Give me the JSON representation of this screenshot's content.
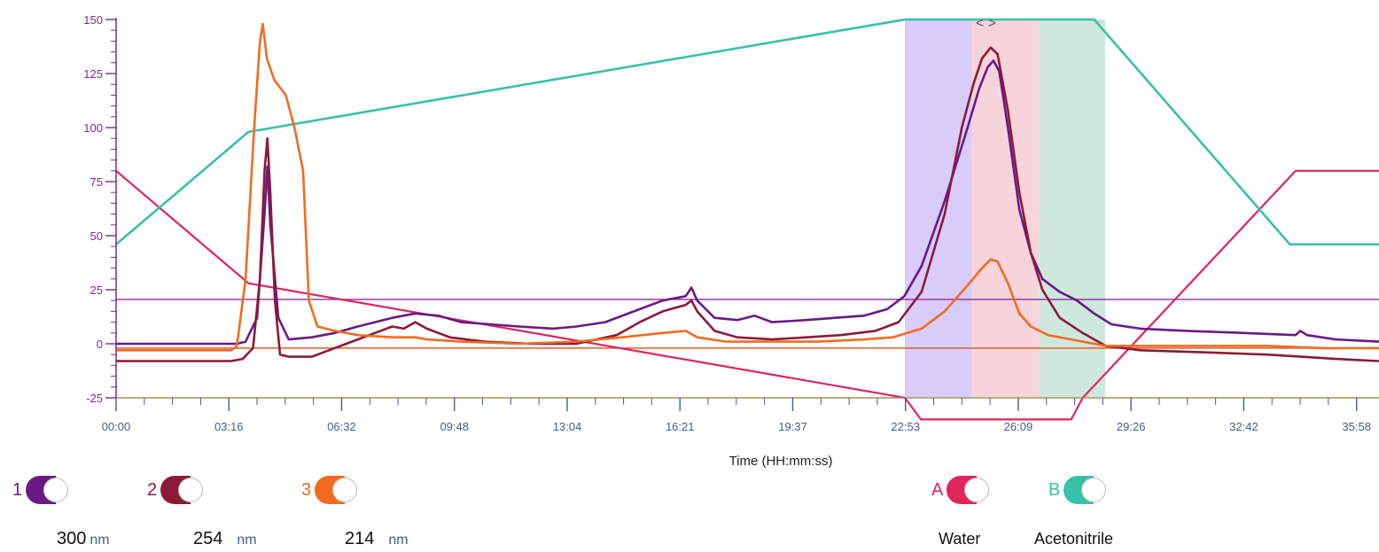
{
  "chart_data": {
    "type": "line",
    "x_unit_label": "Time (HH:mm:ss)",
    "y_ticks": [
      "150",
      "125",
      "100",
      "75",
      "50",
      "25",
      "0",
      "-25"
    ],
    "ylim": [
      -25,
      150
    ],
    "x_ticks": [
      "00:00",
      "03:16",
      "06:32",
      "09:48",
      "13:04",
      "16:21",
      "19:37",
      "22:53",
      "26:09",
      "29:26",
      "32:42",
      "35:58"
    ],
    "xlim_seconds": [
      0,
      2195
    ],
    "threshold_lines": [
      {
        "value": 20.5,
        "color": "#8e2aa3"
      },
      {
        "value": -2,
        "color": "#e35a2a"
      },
      {
        "value": -25,
        "color": "#e8c33a"
      }
    ],
    "fractions": [
      {
        "start_s": 1371,
        "end_s": 1487,
        "color": "#d8ccfb"
      },
      {
        "start_s": 1487,
        "end_s": 1604,
        "color": "#f7d4da"
      },
      {
        "start_s": 1604,
        "end_s": 1719,
        "color": "#cfe8dc"
      }
    ],
    "series": [
      {
        "name": "A",
        "color": "#e0245e",
        "width": 2.2,
        "points": [
          [
            0,
            80
          ],
          [
            230,
            28
          ],
          [
            1371,
            -25
          ],
          [
            1399,
            -35
          ],
          [
            1500,
            -35
          ],
          [
            1600,
            -35
          ],
          [
            1660,
            -35
          ],
          [
            1680,
            -25
          ],
          [
            2050,
            80
          ],
          [
            2195,
            80
          ]
        ]
      },
      {
        "name": "B",
        "color": "#36c1a8",
        "width": 2.6,
        "points": [
          [
            0,
            46
          ],
          [
            230,
            98
          ],
          [
            1371,
            150
          ],
          [
            1700,
            150
          ],
          [
            2040,
            46
          ],
          [
            2195,
            46
          ]
        ]
      },
      {
        "name": "1",
        "color": "#6a1a86",
        "width": 2.6,
        "points": [
          [
            0,
            0
          ],
          [
            210,
            0
          ],
          [
            225,
            1
          ],
          [
            245,
            12
          ],
          [
            258,
            60
          ],
          [
            263,
            82
          ],
          [
            268,
            55
          ],
          [
            282,
            12
          ],
          [
            300,
            2
          ],
          [
            340,
            3
          ],
          [
            380,
            5
          ],
          [
            420,
            8
          ],
          [
            480,
            12
          ],
          [
            520,
            14
          ],
          [
            560,
            13
          ],
          [
            600,
            10
          ],
          [
            650,
            9
          ],
          [
            700,
            8
          ],
          [
            760,
            7
          ],
          [
            800,
            8
          ],
          [
            850,
            10
          ],
          [
            900,
            15
          ],
          [
            950,
            20
          ],
          [
            990,
            22
          ],
          [
            1000,
            26
          ],
          [
            1010,
            20
          ],
          [
            1040,
            12
          ],
          [
            1080,
            11
          ],
          [
            1110,
            13
          ],
          [
            1140,
            10
          ],
          [
            1200,
            11
          ],
          [
            1250,
            12
          ],
          [
            1300,
            13
          ],
          [
            1340,
            16
          ],
          [
            1370,
            22
          ],
          [
            1400,
            36
          ],
          [
            1440,
            66
          ],
          [
            1480,
            100
          ],
          [
            1500,
            118
          ],
          [
            1515,
            128
          ],
          [
            1525,
            131
          ],
          [
            1535,
            126
          ],
          [
            1550,
            100
          ],
          [
            1570,
            62
          ],
          [
            1590,
            42
          ],
          [
            1610,
            30
          ],
          [
            1640,
            24
          ],
          [
            1670,
            20
          ],
          [
            1700,
            14
          ],
          [
            1730,
            9
          ],
          [
            1780,
            7
          ],
          [
            1860,
            6
          ],
          [
            1960,
            5
          ],
          [
            2050,
            4
          ],
          [
            2058,
            6
          ],
          [
            2070,
            4
          ],
          [
            2120,
            2
          ],
          [
            2195,
            1
          ]
        ]
      },
      {
        "name": "2",
        "color": "#8b1a3a",
        "width": 2.6,
        "points": [
          [
            0,
            -8
          ],
          [
            200,
            -8
          ],
          [
            220,
            -7
          ],
          [
            238,
            -2
          ],
          [
            250,
            30
          ],
          [
            258,
            80
          ],
          [
            263,
            95
          ],
          [
            268,
            70
          ],
          [
            276,
            20
          ],
          [
            285,
            -5
          ],
          [
            300,
            -6
          ],
          [
            340,
            -6
          ],
          [
            360,
            -4
          ],
          [
            400,
            0
          ],
          [
            440,
            4
          ],
          [
            480,
            8
          ],
          [
            500,
            7
          ],
          [
            520,
            10
          ],
          [
            540,
            7
          ],
          [
            580,
            3
          ],
          [
            640,
            1
          ],
          [
            720,
            0
          ],
          [
            800,
            0
          ],
          [
            870,
            4
          ],
          [
            910,
            10
          ],
          [
            950,
            15
          ],
          [
            990,
            18
          ],
          [
            1000,
            20
          ],
          [
            1010,
            15
          ],
          [
            1040,
            6
          ],
          [
            1080,
            3
          ],
          [
            1140,
            2
          ],
          [
            1200,
            3
          ],
          [
            1260,
            4
          ],
          [
            1320,
            6
          ],
          [
            1360,
            10
          ],
          [
            1400,
            24
          ],
          [
            1440,
            60
          ],
          [
            1470,
            100
          ],
          [
            1490,
            120
          ],
          [
            1505,
            132
          ],
          [
            1520,
            137
          ],
          [
            1532,
            134
          ],
          [
            1550,
            108
          ],
          [
            1570,
            70
          ],
          [
            1590,
            42
          ],
          [
            1610,
            25
          ],
          [
            1640,
            12
          ],
          [
            1680,
            5
          ],
          [
            1720,
            -1
          ],
          [
            1780,
            -3
          ],
          [
            1900,
            -4
          ],
          [
            2000,
            -5
          ],
          [
            2060,
            -6
          ],
          [
            2120,
            -7
          ],
          [
            2195,
            -8
          ]
        ]
      },
      {
        "name": "3",
        "color": "#f26b1f",
        "width": 2.6,
        "points": [
          [
            0,
            -3
          ],
          [
            200,
            -3
          ],
          [
            210,
            -1
          ],
          [
            225,
            30
          ],
          [
            240,
            100
          ],
          [
            250,
            140
          ],
          [
            255,
            148
          ],
          [
            262,
            132
          ],
          [
            275,
            122
          ],
          [
            295,
            115
          ],
          [
            310,
            100
          ],
          [
            325,
            80
          ],
          [
            335,
            20
          ],
          [
            350,
            8
          ],
          [
            380,
            6
          ],
          [
            420,
            4
          ],
          [
            480,
            3
          ],
          [
            520,
            3
          ],
          [
            540,
            2
          ],
          [
            600,
            1
          ],
          [
            700,
            0
          ],
          [
            800,
            1
          ],
          [
            880,
            3
          ],
          [
            950,
            5
          ],
          [
            990,
            6
          ],
          [
            1010,
            3
          ],
          [
            1060,
            1
          ],
          [
            1140,
            1
          ],
          [
            1220,
            1
          ],
          [
            1300,
            2
          ],
          [
            1350,
            3
          ],
          [
            1400,
            7
          ],
          [
            1440,
            15
          ],
          [
            1480,
            27
          ],
          [
            1505,
            35
          ],
          [
            1520,
            39
          ],
          [
            1532,
            38
          ],
          [
            1550,
            28
          ],
          [
            1570,
            14
          ],
          [
            1590,
            8
          ],
          [
            1620,
            4
          ],
          [
            1660,
            2
          ],
          [
            1720,
            -1
          ],
          [
            1780,
            -1
          ],
          [
            1900,
            -1
          ],
          [
            2000,
            -1
          ],
          [
            2100,
            -2
          ],
          [
            2195,
            -2
          ]
        ]
      }
    ]
  },
  "legend": {
    "channels": [
      {
        "label": "1",
        "color": "#6a1a86"
      },
      {
        "label": "2",
        "color": "#8b1a3a"
      },
      {
        "label": "3",
        "color": "#f26b1f"
      }
    ],
    "wavelengths": [
      {
        "value": "300",
        "unit": "nm"
      },
      {
        "value": "254",
        "unit": "nm"
      },
      {
        "value": "214",
        "unit": "nm"
      }
    ],
    "solvents": [
      {
        "label": "A",
        "color": "#e0245e",
        "name": "Water"
      },
      {
        "label": "B",
        "color": "#36c1a8",
        "name": "Acetonitrile"
      }
    ]
  },
  "handle_glyph": "< >"
}
